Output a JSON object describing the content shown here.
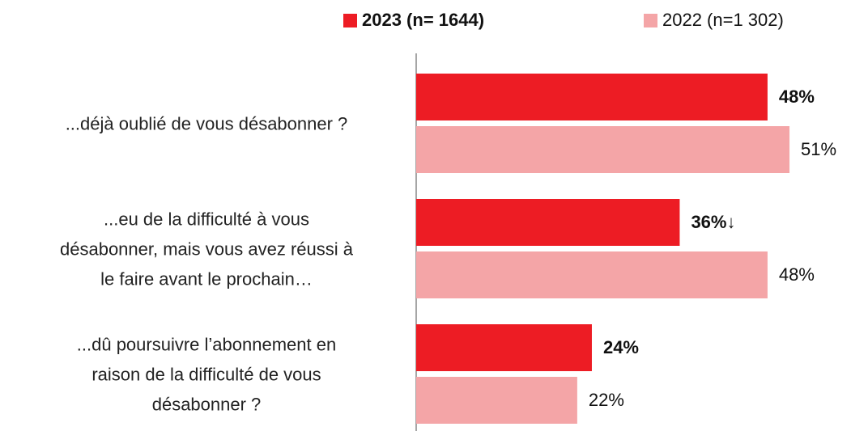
{
  "chart_data": {
    "type": "bar",
    "orientation": "horizontal",
    "categories": [
      "...déjà oublié de vous désabonner ?",
      "...eu de la difficulté à vous\ndésabonner, mais vous avez réussi à\nle faire avant le prochain…",
      "...dû poursuivre l’abonnement en\nraison de la difficulté de vous\ndésabonner ?"
    ],
    "series": [
      {
        "name": "2023 (n= 1644)",
        "color": "#ed1c24",
        "values": [
          48,
          36,
          24
        ],
        "value_labels": [
          "48%",
          "36%↓",
          "24%"
        ]
      },
      {
        "name": "2022 (n=1 302)",
        "color": "#f4a5a7",
        "values": [
          51,
          48,
          22
        ],
        "value_labels": [
          "51%",
          "48%",
          "22%"
        ]
      }
    ],
    "legend": "top"
  }
}
